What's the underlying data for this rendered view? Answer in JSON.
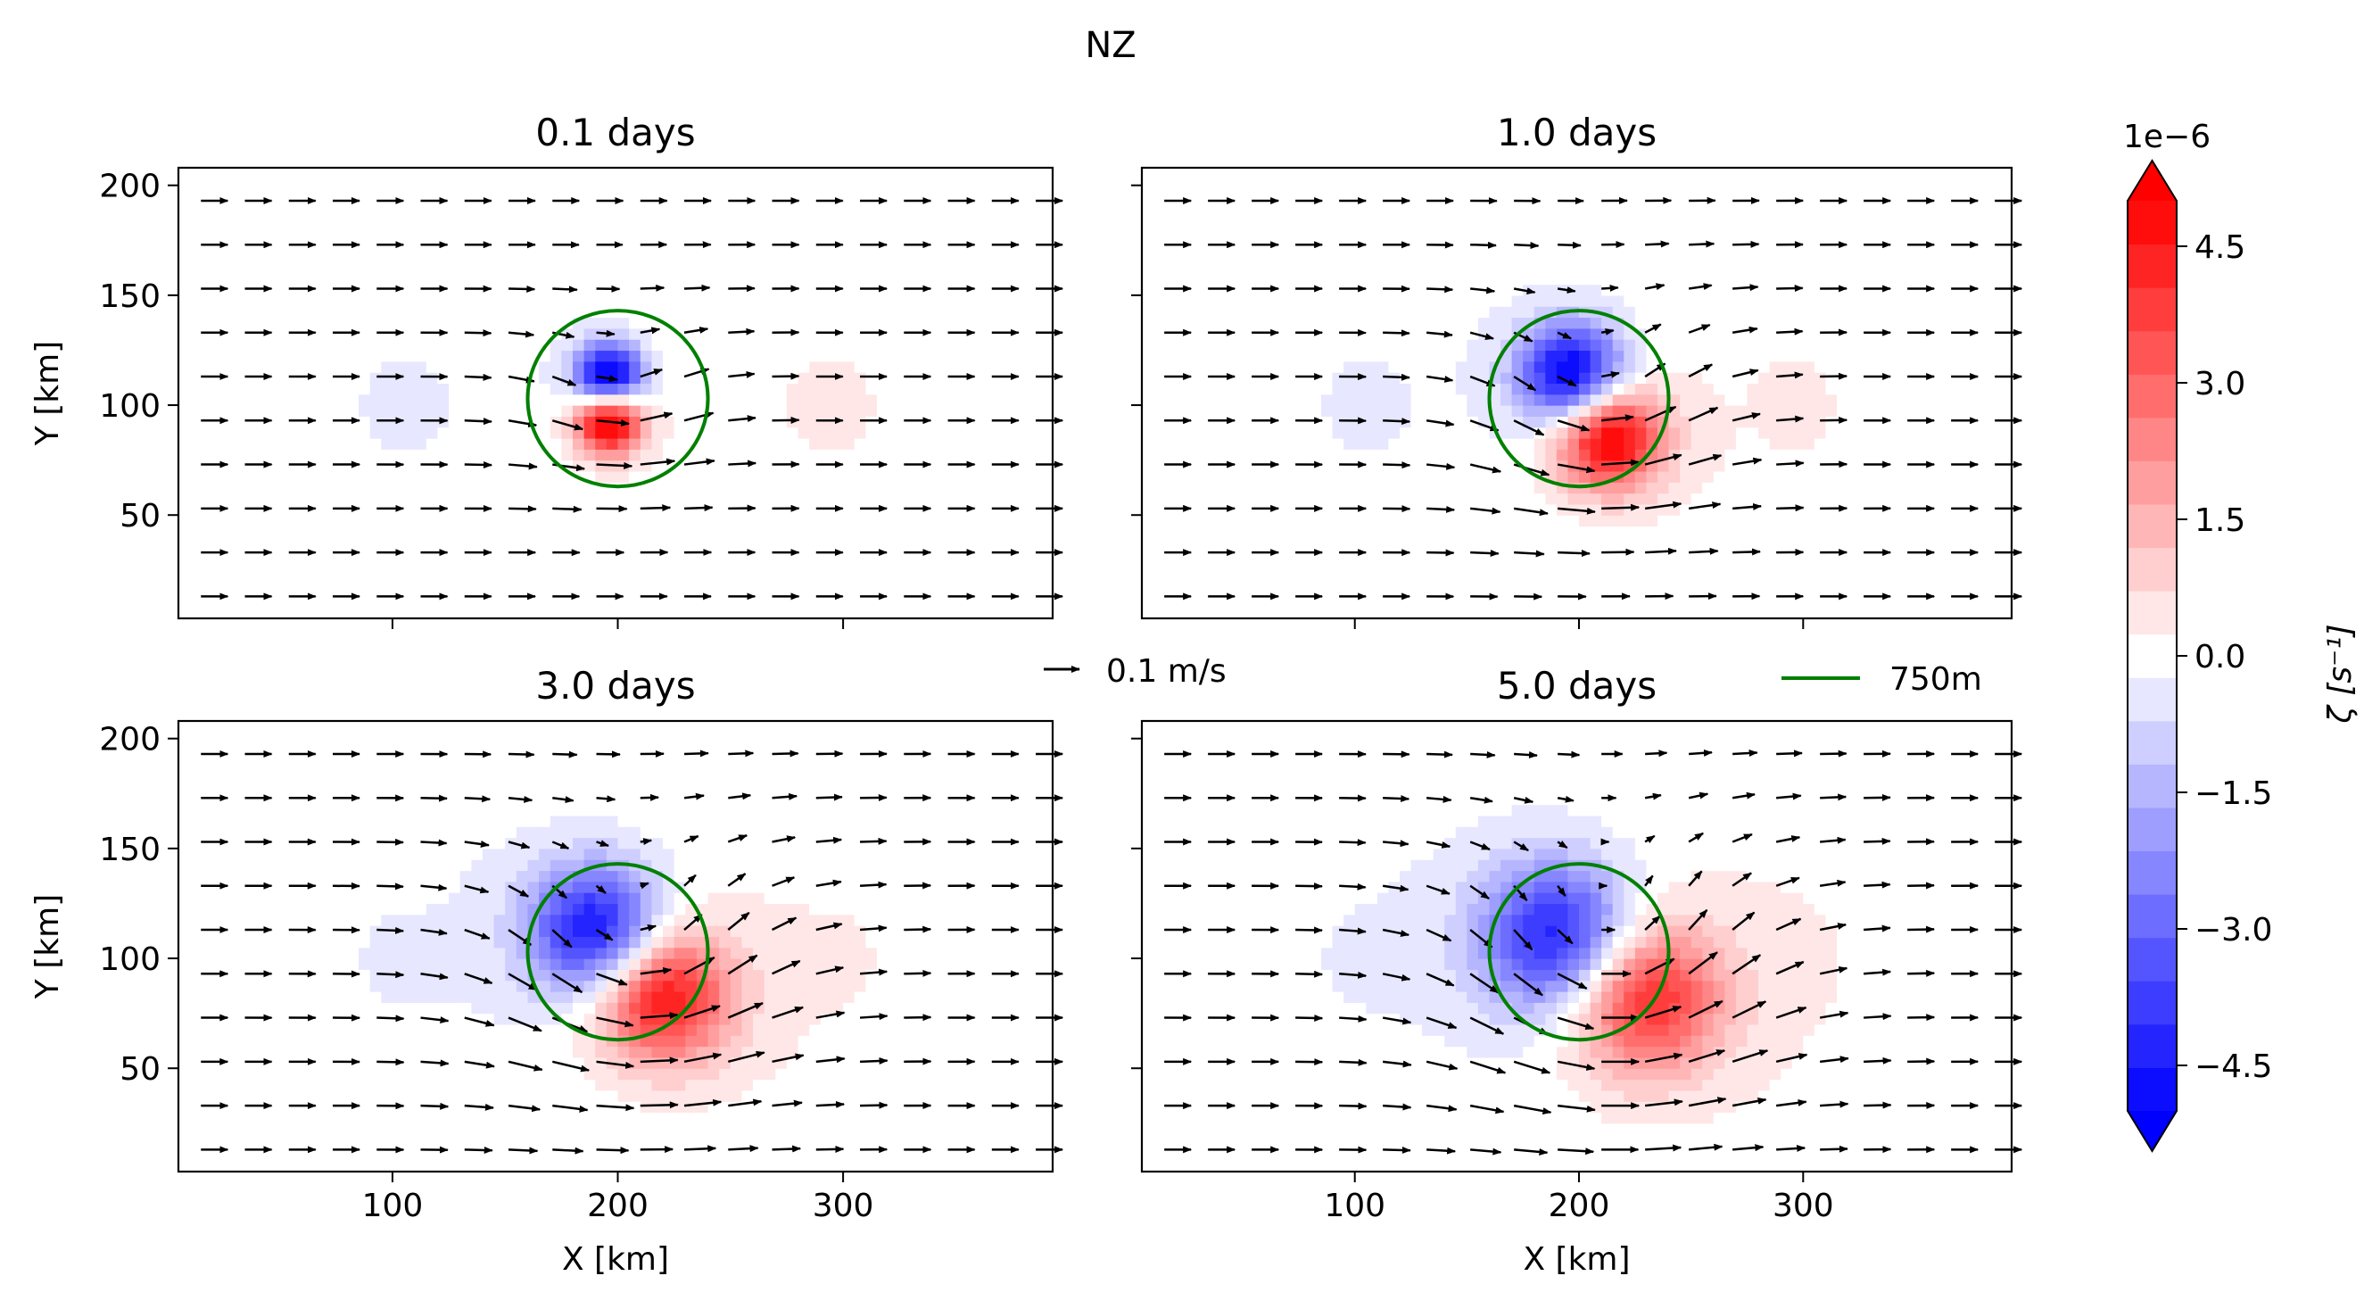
{
  "figure": {
    "title": "NZ",
    "quiver_key_label": "0.1 m/s",
    "legend_label": "750m",
    "legend_color": "#008000"
  },
  "colorbar": {
    "label": "ζ [s⁻¹]",
    "multiplier": "1e−6",
    "ticks": [
      "4.5",
      "3.0",
      "1.5",
      "0.0",
      "−1.5",
      "−3.0",
      "−4.5"
    ],
    "tick_values": [
      4.5,
      3.0,
      1.5,
      0.0,
      -1.5,
      -3.0,
      -4.5
    ],
    "range": [
      -5.0,
      5.0
    ],
    "levels": 21,
    "cmap": "bwr",
    "positive_color": "#ff0000",
    "negative_color": "#0000ff"
  },
  "chart_data": [
    {
      "type": "heatmap",
      "title": "0.1 days",
      "xlabel": "",
      "ylabel": "Y [km]",
      "xlim": [
        5,
        393
      ],
      "ylim": [
        3,
        208
      ],
      "xticks": [
        100,
        200,
        300
      ],
      "yticks": [
        50,
        100,
        150,
        200
      ],
      "ytick_labels": [
        "50",
        "100",
        "150",
        "200"
      ],
      "circle": {
        "center_x": 200,
        "center_y": 103,
        "radius_km": 40
      },
      "vortex": {
        "center_x": 196,
        "center_y": 103,
        "positive_amp": 6.0,
        "negative_amp": 6.0,
        "rotation_deg": 0,
        "spread_km": 14
      }
    },
    {
      "type": "heatmap",
      "title": "1.0 days",
      "xlabel": "",
      "ylabel": "",
      "xlim": [
        5,
        393
      ],
      "ylim": [
        3,
        208
      ],
      "xticks": [
        100,
        200,
        300
      ],
      "yticks": [
        50,
        100,
        150,
        200
      ],
      "circle": {
        "center_x": 200,
        "center_y": 103,
        "radius_km": 40
      },
      "vortex": {
        "center_x": 205,
        "center_y": 100,
        "positive_amp": 5.5,
        "negative_amp": 5.5,
        "rotation_deg": 30,
        "spread_km": 22
      }
    },
    {
      "type": "heatmap",
      "title": "3.0 days",
      "xlabel": "X [km]",
      "ylabel": "Y [km]",
      "xlim": [
        5,
        393
      ],
      "ylim": [
        3,
        208
      ],
      "xticks": [
        100,
        200,
        300
      ],
      "xtick_labels": [
        "100",
        "200",
        "300"
      ],
      "yticks": [
        50,
        100,
        150,
        200
      ],
      "ytick_labels": [
        "50",
        "100",
        "150",
        "200"
      ],
      "circle": {
        "center_x": 200,
        "center_y": 103,
        "radius_km": 40
      },
      "vortex": {
        "center_x": 205,
        "center_y": 98,
        "positive_amp": 4.8,
        "negative_amp": 4.8,
        "rotation_deg": 45,
        "spread_km": 28
      }
    },
    {
      "type": "heatmap",
      "title": "5.0 days",
      "xlabel": "X [km]",
      "ylabel": "",
      "xlim": [
        5,
        393
      ],
      "ylim": [
        3,
        208
      ],
      "xticks": [
        100,
        200,
        300
      ],
      "xtick_labels": [
        "100",
        "200",
        "300"
      ],
      "yticks": [
        50,
        100,
        150,
        200
      ],
      "circle": {
        "center_x": 200,
        "center_y": 103,
        "radius_km": 40
      },
      "vortex": {
        "center_x": 210,
        "center_y": 96,
        "positive_amp": 4.2,
        "negative_amp": 4.5,
        "rotation_deg": 55,
        "spread_km": 32
      }
    }
  ]
}
